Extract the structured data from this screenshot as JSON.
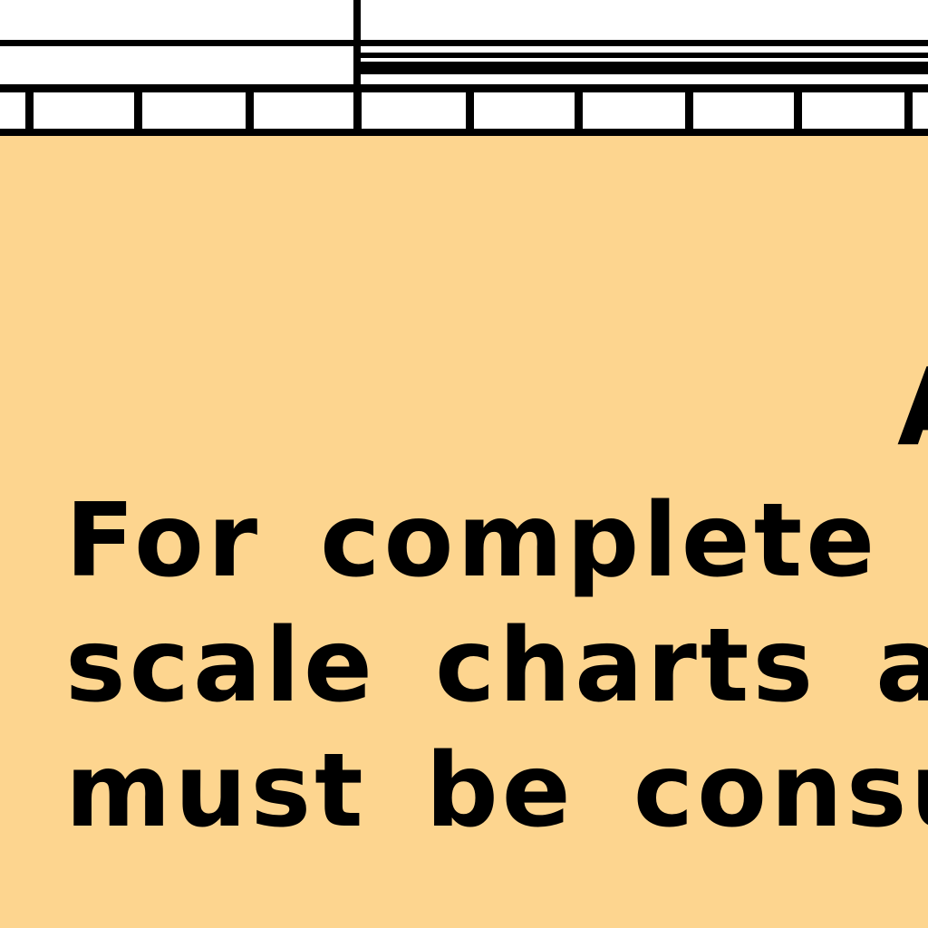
{
  "chart_note": {
    "heading_fragment": "A",
    "lines": [
      "For complete de",
      "scale charts and",
      "must be consul"
    ]
  },
  "colors": {
    "panel_background": "#fdd58f",
    "ink": "#000000",
    "border_background": "#ffffff"
  }
}
